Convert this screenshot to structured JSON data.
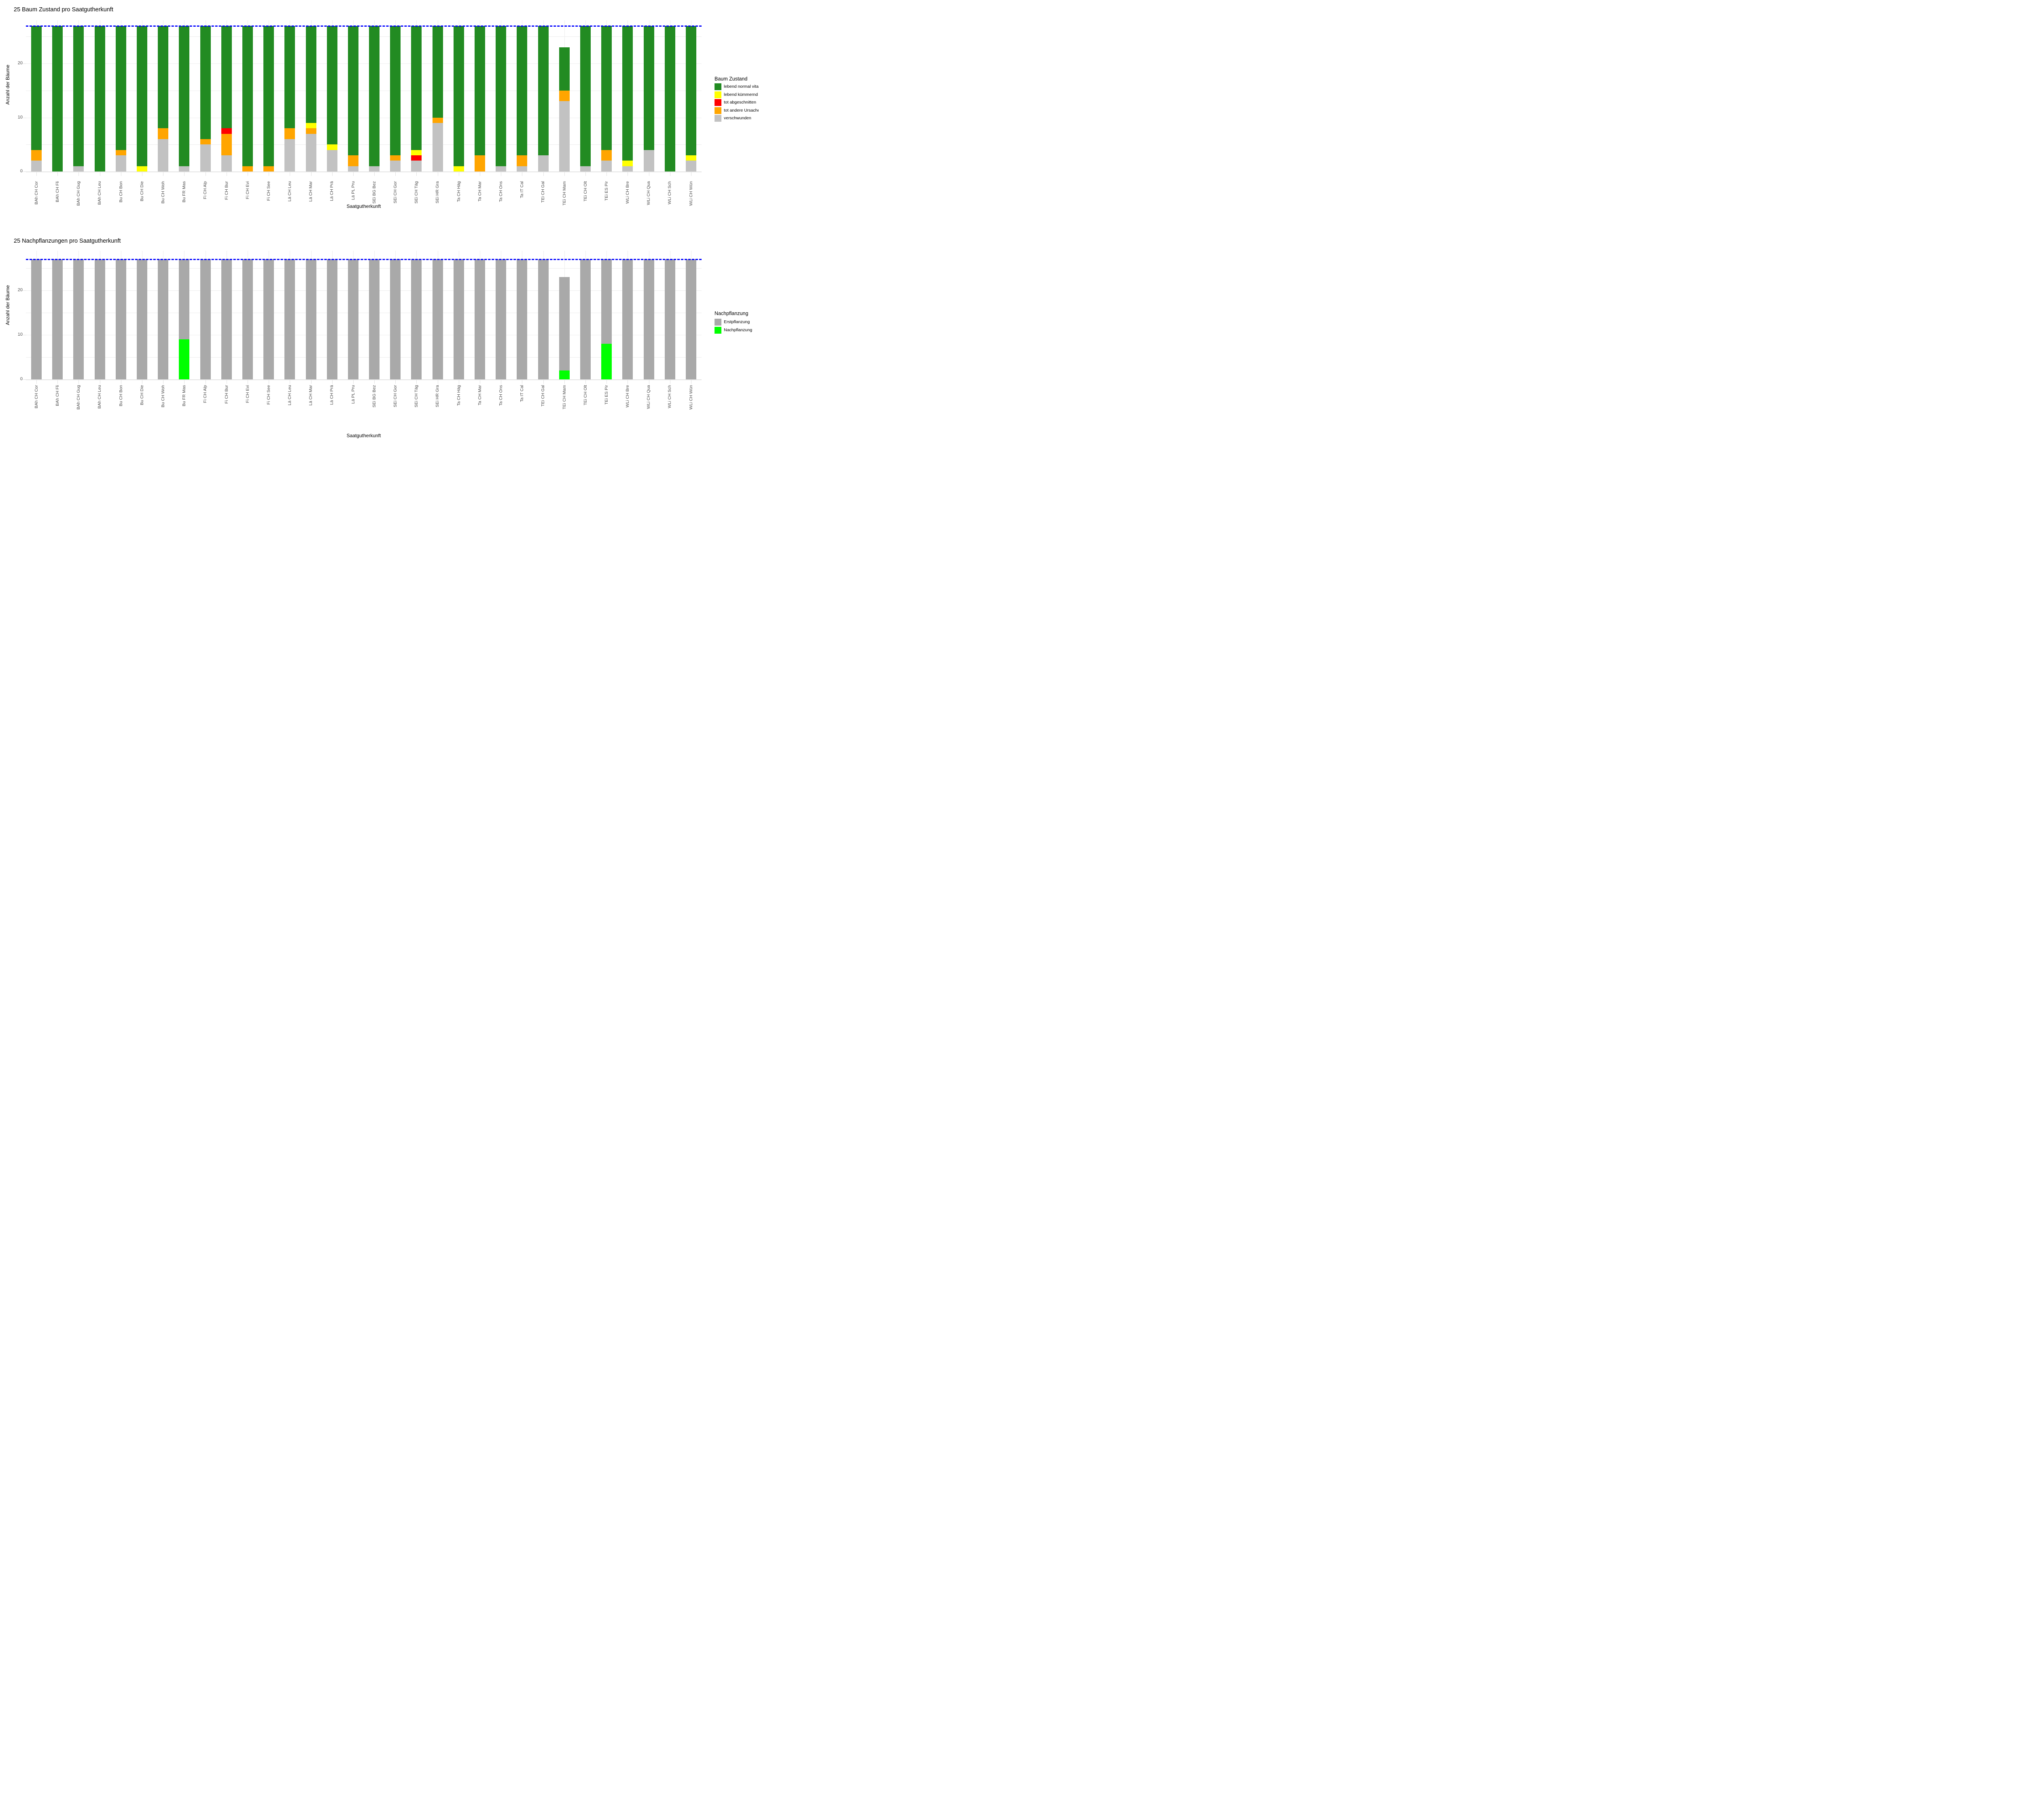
{
  "chart_data": [
    {
      "type": "bar",
      "subtype": "stacked-vertical",
      "title": "25 Baum Zustand pro Saatgutherkunft",
      "xlabel": "Saatgutherkunft",
      "ylabel": "Anzahl der Bäume",
      "legend_title": "Baum Zustand",
      "y_ticks": [
        0,
        10,
        20
      ],
      "gridlines_y": [
        5,
        10,
        15,
        20,
        25
      ],
      "ylim": [
        0,
        28
      ],
      "grid": "on",
      "legend_position": "right",
      "reference_line": {
        "value": 27,
        "color": "#0000ff",
        "style": "dashed"
      },
      "categories": [
        "BAh CH Cor",
        "BAh CH Fli",
        "BAh CH Gug",
        "BAh CH Leu",
        "Bu CH Bon",
        "Bu CH Die",
        "Bu CH Woh",
        "Bu FR Mas",
        "Fi CH Alp",
        "Fi CH Bur",
        "Fi CH Evi",
        "Fi CH See",
        "Lä CH Leu",
        "Lä CH Mar",
        "Lä CH Prä",
        "Lä PL Pru",
        "SEi BG Bez",
        "SEi CH Gor",
        "SEi CH Täg",
        "SEi HR Gra",
        "Ta CH Häg",
        "Ta CH Mar",
        "Ta CH Ons",
        "Ta IT Cal",
        "TEi CH Gal",
        "TEi CH Mam",
        "TEi CH Olt",
        "TEi ES Pir",
        "WLi CH Bre",
        "WLi CH Qua",
        "WLi CH Sch",
        "WLi CH Wün"
      ],
      "series": [
        {
          "name": "verschwunden",
          "color": "#c2c2c2",
          "values": [
            2,
            0,
            1,
            0,
            3,
            0,
            6,
            1,
            5,
            3,
            0,
            0,
            6,
            7,
            4,
            1,
            1,
            2,
            2,
            9,
            0,
            0,
            1,
            1,
            3,
            13,
            1,
            2,
            1,
            4,
            0,
            2
          ]
        },
        {
          "name": "tot andere Ursache",
          "color": "#ffa500",
          "values": [
            2,
            0,
            0,
            0,
            1,
            0,
            2,
            0,
            1,
            4,
            1,
            1,
            2,
            1,
            0,
            2,
            0,
            1,
            0,
            1,
            0,
            3,
            0,
            2,
            0,
            2,
            0,
            2,
            0,
            0,
            0,
            0
          ]
        },
        {
          "name": "tot abgeschnitten",
          "color": "#ff0000",
          "values": [
            0,
            0,
            0,
            0,
            0,
            0,
            0,
            0,
            0,
            1,
            0,
            0,
            0,
            0,
            0,
            0,
            0,
            0,
            1,
            0,
            0,
            0,
            0,
            0,
            0,
            0,
            0,
            0,
            0,
            0,
            0,
            0
          ]
        },
        {
          "name": "lebend kümmernd",
          "color": "#ffff00",
          "values": [
            0,
            0,
            0,
            0,
            0,
            1,
            0,
            0,
            0,
            0,
            0,
            0,
            0,
            1,
            1,
            0,
            0,
            0,
            1,
            0,
            1,
            0,
            0,
            0,
            0,
            0,
            0,
            0,
            1,
            0,
            0,
            1
          ]
        },
        {
          "name": "lebend normal vital",
          "color": "#228b22",
          "values": [
            23,
            27,
            26,
            27,
            23,
            26,
            19,
            26,
            21,
            19,
            26,
            26,
            19,
            18,
            22,
            24,
            26,
            24,
            23,
            17,
            26,
            24,
            26,
            24,
            24,
            8,
            26,
            23,
            25,
            23,
            27,
            24
          ]
        }
      ],
      "legend_order": [
        "lebend normal vital",
        "lebend kümmernd",
        "tot abgeschnitten",
        "tot andere Ursache",
        "verschwunden"
      ]
    },
    {
      "type": "bar",
      "subtype": "stacked-vertical",
      "title": "25 Nachpflanzungen pro Saatgutherkunft",
      "xlabel": "Saatgutherkunft",
      "ylabel": "Anzahl der Bäume",
      "legend_title": "Nachpflanzung",
      "y_ticks": [
        0,
        10,
        20
      ],
      "gridlines_y": [
        5,
        10,
        15,
        20,
        25
      ],
      "ylim": [
        0,
        28
      ],
      "grid": "on",
      "legend_position": "right",
      "reference_line": {
        "value": 27,
        "color": "#0000ff",
        "style": "dashed"
      },
      "categories": [
        "BAh CH Cor",
        "BAh CH Fli",
        "BAh CH Gug",
        "BAh CH Leu",
        "Bu CH Bon",
        "Bu CH Die",
        "Bu CH Woh",
        "Bu FR Mas",
        "Fi CH Alp",
        "Fi CH Bur",
        "Fi CH Evi",
        "Fi CH See",
        "Lä CH Leu",
        "Lä CH Mar",
        "Lä CH Prä",
        "Lä PL Pru",
        "SEi BG Bez",
        "SEi CH Gor",
        "SEi CH Täg",
        "SEi HR Gra",
        "Ta CH Häg",
        "Ta CH Mar",
        "Ta CH Ons",
        "Ta IT Cal",
        "TEi CH Gal",
        "TEi CH Mam",
        "TEi CH Olt",
        "TEi ES Pir",
        "WLi CH Bre",
        "WLi CH Qua",
        "WLi CH Sch",
        "WLi CH Wün"
      ],
      "series": [
        {
          "name": "Nachpflanzung",
          "color": "#00ff00",
          "values": [
            0,
            0,
            0,
            0,
            0,
            0,
            0,
            9,
            0,
            0,
            0,
            0,
            0,
            0,
            0,
            0,
            0,
            0,
            0,
            0,
            0,
            0,
            0,
            0,
            0,
            2,
            0,
            8,
            0,
            0,
            0,
            0
          ]
        },
        {
          "name": "Erstpflanzung",
          "color": "#a9a9a9",
          "values": [
            27,
            27,
            27,
            27,
            27,
            27,
            27,
            18,
            27,
            27,
            27,
            27,
            27,
            27,
            27,
            27,
            27,
            27,
            27,
            27,
            27,
            27,
            27,
            27,
            27,
            21,
            27,
            19,
            27,
            27,
            27,
            27
          ]
        }
      ],
      "legend_order": [
        "Erstpflanzung",
        "Nachpflanzung"
      ]
    }
  ]
}
